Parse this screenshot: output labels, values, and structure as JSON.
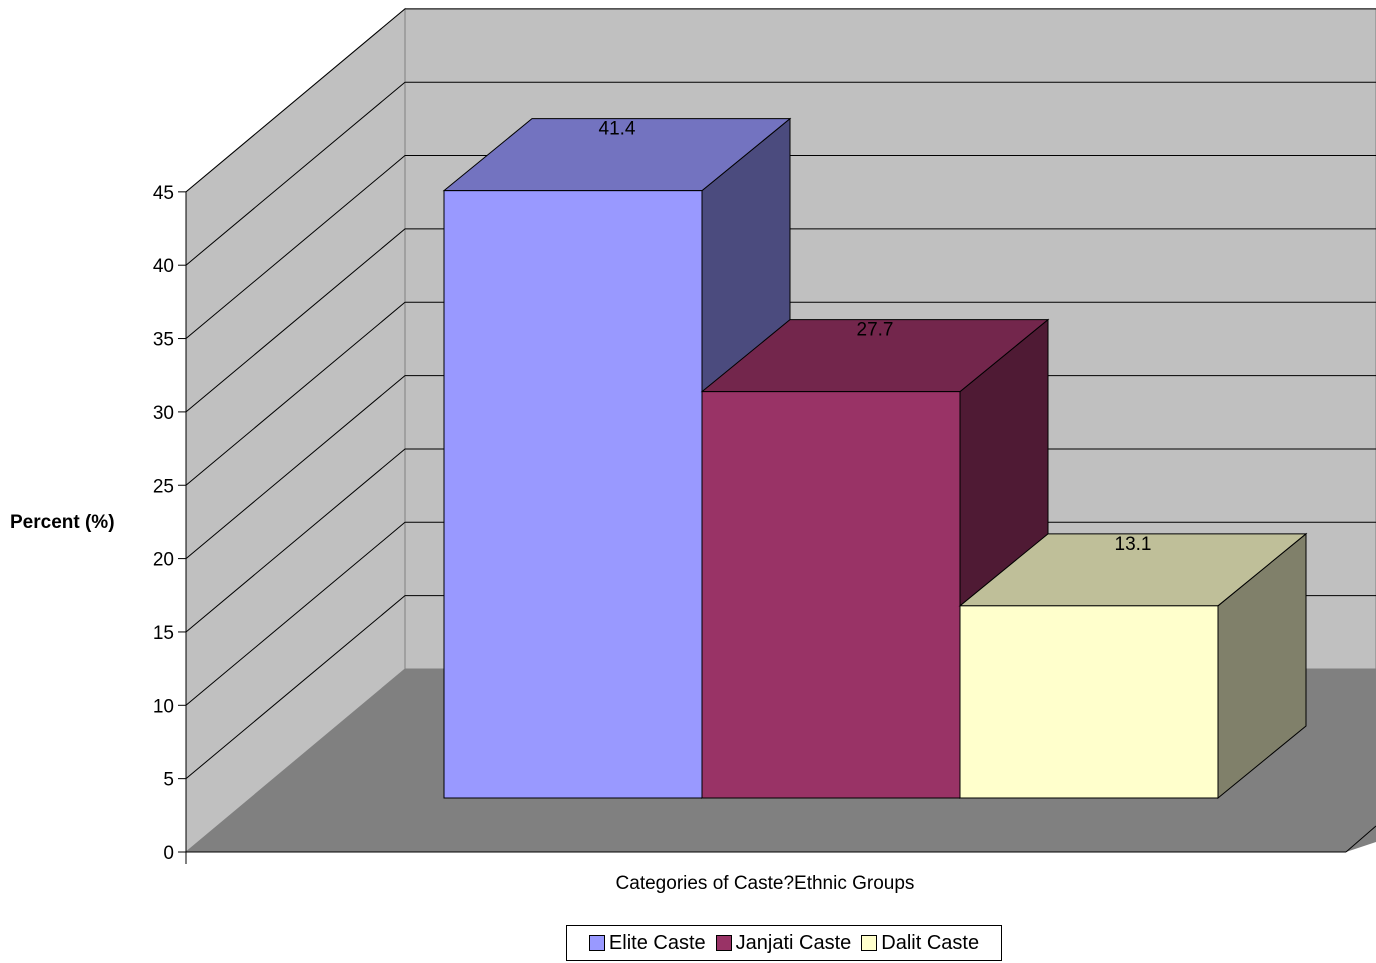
{
  "chart_data": {
    "type": "bar",
    "categories": [
      "Elite Caste",
      "Janjati Caste",
      "Dalit Caste"
    ],
    "values": [
      41.4,
      27.7,
      13.1
    ],
    "data_labels": [
      "41.4",
      "27.7",
      "13.1"
    ],
    "title": "",
    "xlabel": "Categories of Caste?Ethnic Groups",
    "ylabel": "Percent (%)",
    "ylim": [
      0,
      45
    ],
    "yticks": [
      "0",
      "5",
      "10",
      "15",
      "20",
      "25",
      "30",
      "35",
      "40",
      "45"
    ],
    "grid": true,
    "legend_position": "bottom",
    "style": "3d",
    "colors": {
      "Elite Caste": {
        "front": "#9999ff",
        "top": "#7373c0",
        "side": "#4b4b7e"
      },
      "Janjati Caste": {
        "front": "#993366",
        "top": "#73264c",
        "side": "#4f1a34"
      },
      "Dalit Caste": {
        "front": "#ffffcc",
        "top": "#bfbf99",
        "side": "#80806a"
      },
      "wall": "#c0c0c0",
      "floor": "#808080"
    }
  }
}
